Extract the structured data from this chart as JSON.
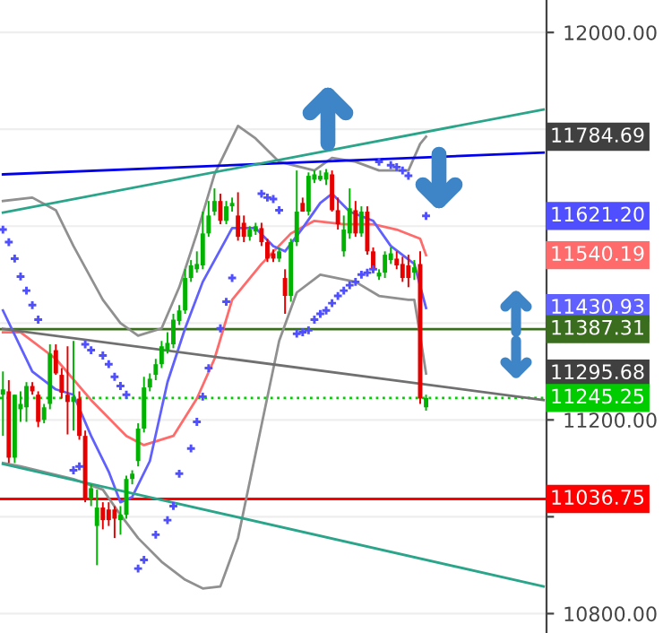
{
  "chart_data": {
    "type": "candlestick",
    "categories": [
      null,
      null,
      null,
      null,
      null,
      null,
      null,
      null,
      null,
      null,
      null,
      null,
      null,
      null,
      null,
      null,
      null,
      null,
      null,
      null,
      null,
      null,
      null,
      null,
      null,
      null,
      null,
      null,
      null,
      null,
      null,
      null,
      null,
      null,
      null,
      null,
      null,
      null,
      null,
      null,
      null,
      null,
      null,
      null,
      null,
      null,
      null,
      null,
      null,
      null,
      null,
      null,
      null,
      null,
      null,
      null,
      null,
      null,
      null,
      null,
      null,
      null,
      null,
      null,
      null,
      null,
      null,
      null,
      null,
      null,
      null,
      null,
      null,
      null,
      null,
      null,
      null,
      null,
      null,
      null,
      null,
      null,
      null,
      null,
      null,
      null,
      null,
      null,
      null,
      null,
      null,
      null,
      null
    ],
    "ohlc": [
      [
        11252,
        11300,
        11167,
        11263
      ],
      [
        11259,
        11282,
        11111,
        11122
      ],
      [
        11122,
        11252,
        11111,
        11252
      ],
      [
        11222,
        11259,
        11196,
        11233
      ],
      [
        11226,
        11278,
        11196,
        11270
      ],
      [
        11270,
        11278,
        11252,
        11259
      ],
      [
        11252,
        11259,
        11185,
        11196
      ],
      [
        11200,
        11233,
        11193,
        11226
      ],
      [
        11233,
        11356,
        11222,
        11337
      ],
      [
        11344,
        11356,
        11293,
        11296
      ],
      [
        11293,
        11307,
        11244,
        11256
      ],
      [
        11252,
        11352,
        11170,
        11237
      ],
      [
        11237,
        11363,
        11178,
        11248
      ],
      [
        11244,
        11259,
        11159,
        11167
      ],
      [
        11167,
        11178,
        11030,
        11037
      ],
      [
        11037,
        11067,
        11022,
        11059
      ],
      [
        10981,
        11056,
        10900,
        11019
      ],
      [
        11019,
        11030,
        10974,
        10993
      ],
      [
        11015,
        11030,
        10981,
        10993
      ],
      [
        11015,
        11022,
        10956,
        10996
      ],
      [
        10993,
        11022,
        10963,
        11004
      ],
      [
        11004,
        11085,
        10996,
        11078
      ],
      [
        11078,
        11096,
        11067,
        11089
      ],
      [
        11115,
        11193,
        11104,
        11182
      ],
      [
        11182,
        11289,
        11174,
        11267
      ],
      [
        11267,
        11296,
        11259,
        11285
      ],
      [
        11293,
        11326,
        11282,
        11315
      ],
      [
        11315,
        11363,
        11307,
        11352
      ],
      [
        11344,
        11381,
        11337,
        11359
      ],
      [
        11356,
        11419,
        11348,
        11407
      ],
      [
        11404,
        11437,
        11396,
        11426
      ],
      [
        11426,
        11511,
        11419,
        11493
      ],
      [
        11493,
        11530,
        11485,
        11519
      ],
      [
        11511,
        11548,
        11504,
        11522
      ],
      [
        11519,
        11630,
        11511,
        11585
      ],
      [
        11585,
        11652,
        11578,
        11622
      ],
      [
        11630,
        11678,
        11622,
        11652
      ],
      [
        11652,
        11667,
        11604,
        11611
      ],
      [
        11611,
        11652,
        11604,
        11641
      ],
      [
        11641,
        11659,
        11630,
        11648
      ],
      [
        11622,
        11670,
        11570,
        11578
      ],
      [
        11607,
        11622,
        11567,
        11578
      ],
      [
        11578,
        11600,
        11570,
        11593
      ],
      [
        11589,
        11607,
        11582,
        11600
      ],
      [
        11596,
        11607,
        11559,
        11567
      ],
      [
        11567,
        11574,
        11526,
        11533
      ],
      [
        11544,
        11552,
        11526,
        11533
      ],
      [
        11533,
        11556,
        11526,
        11548
      ],
      [
        11493,
        11511,
        11419,
        11456
      ],
      [
        11456,
        11574,
        11444,
        11567
      ],
      [
        11567,
        11715,
        11559,
        11630
      ],
      [
        11648,
        11659,
        11630,
        11630
      ],
      [
        11630,
        11711,
        11622,
        11704
      ],
      [
        11696,
        11715,
        11689,
        11707
      ],
      [
        11696,
        11715,
        11693,
        11704
      ],
      [
        11696,
        11718,
        11685,
        11711
      ],
      [
        11707,
        11715,
        11630,
        11633
      ],
      [
        11633,
        11659,
        11593,
        11604
      ],
      [
        11548,
        11622,
        11537,
        11593
      ],
      [
        11585,
        11678,
        11574,
        11637
      ],
      [
        11633,
        11652,
        11578,
        11585
      ],
      [
        11585,
        11641,
        11578,
        11630
      ],
      [
        11630,
        11641,
        11541,
        11548
      ],
      [
        11548,
        11556,
        11504,
        11511
      ],
      [
        11496,
        11511,
        11489,
        11504
      ],
      [
        11504,
        11548,
        11493,
        11541
      ],
      [
        11530,
        11556,
        11522,
        11544
      ],
      [
        11533,
        11548,
        11511,
        11519
      ],
      [
        11522,
        11537,
        11485,
        11493
      ],
      [
        11519,
        11541,
        11474,
        11493
      ],
      [
        11504,
        11530,
        11489,
        11515
      ],
      [
        11522,
        11548,
        11233,
        11244
      ],
      [
        11226,
        11252,
        11219,
        11245.25
      ],
      null,
      null,
      null,
      null,
      null,
      null,
      null,
      null,
      null,
      null,
      null,
      null,
      null,
      null,
      null,
      null,
      null,
      null,
      null,
      null
    ],
    "colors": [
      "#00b300",
      "#e60000",
      "#00b300",
      "#00b300",
      "#00b300",
      "#e60000",
      "#e60000",
      "#00b300",
      "#00b300",
      "#e60000",
      "#e60000",
      "#e60000",
      "#00b300",
      "#e60000",
      "#e60000",
      "#00b300",
      "#00b300",
      "#e60000",
      "#e60000",
      "#e60000",
      "#00b300",
      "#00b300",
      "#00b300",
      "#00b300",
      "#00b300",
      "#00b300",
      "#00b300",
      "#00b300",
      "#00b300",
      "#00b300",
      "#00b300",
      "#00b300",
      "#00b300",
      "#00b300",
      "#00b300",
      "#00b300",
      "#00b300",
      "#e60000",
      "#00b300",
      "#00b300",
      "#e60000",
      "#e60000",
      "#00b300",
      "#00b300",
      "#e60000",
      "#e60000",
      "#e60000",
      "#00b300",
      "#e60000",
      "#00b300",
      "#00b300",
      "#e60000",
      "#00b300",
      "#00b300",
      "#00b300",
      "#00b300",
      "#e60000",
      "#e60000",
      "#00b300",
      "#00b300",
      "#e60000",
      "#00b300",
      "#e60000",
      "#e60000",
      "#00b300",
      "#00b300",
      "#00b300",
      "#e60000",
      "#e60000",
      "#e60000",
      "#00b300",
      "#e60000",
      "#00b300",
      null,
      null,
      null,
      null,
      null,
      null,
      null,
      null,
      null,
      null,
      null,
      null,
      null,
      null,
      null,
      null,
      null,
      null,
      null,
      null
    ],
    "series": [
      {
        "type": "line",
        "color": "#909090",
        "values": [
          11652,
          null,
          null,
          null,
          null,
          11659,
          null,
          null,
          null,
          11633,
          null,
          null,
          11559,
          null,
          null,
          null,
          null,
          11448,
          null,
          null,
          11400,
          null,
          null,
          11374,
          null,
          null,
          null,
          11389,
          null,
          null,
          11474,
          null,
          null,
          11585,
          null,
          null,
          11707,
          null,
          null,
          null,
          11807,
          null,
          null,
          11781,
          null,
          null,
          null,
          11733,
          null,
          null,
          null,
          null,
          null,
          11715,
          null,
          null,
          11741,
          null,
          null,
          null,
          11733,
          null,
          null,
          null,
          11715,
          null,
          null,
          null,
          null,
          11715,
          null,
          11770,
          11784.69,
          null,
          null,
          null,
          null,
          null,
          null,
          null,
          null,
          null,
          null,
          null,
          null,
          null,
          null,
          null,
          null,
          null,
          null,
          null,
          null
        ]
      },
      {
        "type": "line",
        "color": "#909090",
        "values": [
          11111,
          null,
          null,
          11104,
          null,
          null,
          null,
          null,
          null,
          null,
          null,
          null,
          11078,
          null,
          null,
          null,
          null,
          11056,
          null,
          null,
          11004,
          null,
          null,
          10956,
          null,
          null,
          null,
          10907,
          null,
          null,
          null,
          10870,
          null,
          null,
          10852,
          null,
          null,
          10856,
          null,
          null,
          10956,
          null,
          null,
          null,
          11189,
          null,
          null,
          11363,
          null,
          null,
          11463,
          null,
          null,
          null,
          11500,
          null,
          null,
          null,
          null,
          null,
          11485,
          null,
          null,
          null,
          11456,
          null,
          null,
          null,
          null,
          11448,
          11448,
          11374,
          11295.68,
          null,
          null,
          null,
          null,
          null,
          null,
          null,
          null,
          null,
          null,
          null,
          null,
          null,
          null,
          null,
          null,
          null,
          null,
          null,
          null
        ]
      },
      {
        "type": "line",
        "color": "#ff6b6b",
        "values": [
          11381,
          null,
          null,
          11381,
          null,
          null,
          null,
          null,
          null,
          11326,
          null,
          null,
          null,
          null,
          null,
          11241,
          null,
          null,
          null,
          null,
          null,
          11167,
          null,
          null,
          11148,
          null,
          null,
          null,
          null,
          11167,
          null,
          null,
          null,
          11244,
          null,
          null,
          11326,
          null,
          null,
          11448,
          null,
          null,
          null,
          null,
          11522,
          null,
          null,
          null,
          null,
          11585,
          null,
          null,
          null,
          11611,
          null,
          null,
          null,
          null,
          11604,
          null,
          null,
          null,
          null,
          11604,
          null,
          null,
          null,
          11593,
          null,
          null,
          null,
          11574,
          11540.19,
          null,
          null,
          null,
          null,
          null,
          null,
          null,
          null,
          null,
          null,
          null,
          null,
          null,
          null,
          null,
          null,
          null,
          null,
          null,
          null
        ]
      },
      {
        "type": "line",
        "color": "#6060ff",
        "values": [
          11426,
          null,
          null,
          null,
          null,
          11300,
          null,
          null,
          null,
          11263,
          null,
          null,
          11252,
          null,
          null,
          11167,
          null,
          null,
          11093,
          null,
          11030,
          null,
          11041,
          null,
          null,
          11115,
          null,
          null,
          11278,
          null,
          null,
          11389,
          null,
          null,
          11485,
          null,
          null,
          null,
          null,
          11596,
          null,
          null,
          null,
          11596,
          null,
          null,
          11559,
          null,
          11548,
          null,
          null,
          11596,
          null,
          null,
          11648,
          null,
          11667,
          null,
          null,
          11630,
          null,
          null,
          null,
          11611,
          null,
          null,
          11559,
          null,
          null,
          null,
          11522,
          null,
          11430.93,
          null,
          null,
          null,
          null,
          null,
          null,
          null,
          null,
          null,
          null,
          null,
          null,
          null,
          null,
          null,
          null,
          null,
          null,
          null,
          null
        ]
      },
      {
        "type": "scatter",
        "color": "#4f4fff",
        "marker": "cross",
        "values": [
          11593,
          11567,
          11533,
          11496,
          11467,
          11437,
          11407,
          null,
          null,
          null,
          null,
          null,
          11096,
          11104,
          11356,
          11344,
          null,
          11333,
          11315,
          11289,
          11270,
          11252,
          null,
          10893,
          10911,
          null,
          10963,
          null,
          10993,
          11022,
          11089,
          null,
          11141,
          11196,
          11248,
          11307,
          null,
          11389,
          11444,
          11493,
          null,
          null,
          null,
          null,
          11667,
          11659,
          11656,
          11633,
          null,
          null,
          11378,
          11381,
          11385,
          11407,
          11419,
          11426,
          11441,
          11456,
          11467,
          11478,
          11485,
          11500,
          11504,
          11511,
          11733,
          null,
          11726,
          11722,
          11715,
          11704,
          null,
          null,
          11621.2,
          null,
          null,
          null,
          null,
          null,
          null,
          null,
          null,
          null,
          null,
          null,
          null,
          null,
          null,
          null,
          null,
          null,
          null,
          null,
          null
        ]
      },
      {
        "type": "line",
        "color": "#0000ee",
        "values": [
          11707,
          null,
          null,
          null,
          null,
          null,
          null,
          null,
          null,
          null,
          null,
          null,
          null,
          null,
          null,
          null,
          null,
          null,
          null,
          null,
          null,
          null,
          null,
          null,
          null,
          null,
          null,
          null,
          null,
          null,
          null,
          null,
          null,
          null,
          null,
          null,
          null,
          null,
          null,
          null,
          null,
          null,
          null,
          null,
          null,
          null,
          null,
          null,
          null,
          null,
          null,
          null,
          null,
          null,
          null,
          null,
          null,
          null,
          null,
          null,
          null,
          null,
          null,
          null,
          null,
          null,
          null,
          null,
          null,
          null,
          null,
          null,
          null,
          null,
          null,
          null,
          null,
          null,
          null,
          null,
          null,
          null,
          null,
          null,
          null,
          null,
          null,
          null,
          null,
          null,
          null,
          null,
          11752
        ]
      },
      {
        "type": "line",
        "color": "#2aa58a",
        "values": [
          11628,
          null,
          null,
          null,
          null,
          null,
          null,
          null,
          null,
          null,
          null,
          null,
          null,
          null,
          null,
          null,
          null,
          null,
          null,
          null,
          null,
          null,
          null,
          null,
          null,
          null,
          null,
          null,
          null,
          null,
          null,
          null,
          null,
          null,
          null,
          null,
          null,
          null,
          null,
          null,
          null,
          null,
          null,
          null,
          null,
          null,
          null,
          null,
          null,
          null,
          null,
          null,
          null,
          null,
          null,
          null,
          null,
          null,
          null,
          null,
          null,
          null,
          null,
          null,
          null,
          null,
          null,
          null,
          null,
          null,
          null,
          null,
          null,
          null,
          null,
          null,
          null,
          null,
          null,
          null,
          null,
          null,
          null,
          null,
          null,
          null,
          null,
          null,
          null,
          null,
          null,
          null,
          11841
        ]
      },
      {
        "type": "line",
        "color": "#707070",
        "values": [
          11388,
          null,
          null,
          null,
          null,
          null,
          null,
          null,
          null,
          null,
          null,
          null,
          null,
          null,
          null,
          null,
          null,
          null,
          null,
          null,
          null,
          null,
          null,
          null,
          null,
          null,
          null,
          null,
          null,
          null,
          null,
          null,
          null,
          null,
          null,
          null,
          null,
          null,
          null,
          null,
          null,
          null,
          null,
          null,
          null,
          null,
          null,
          null,
          null,
          null,
          null,
          null,
          null,
          null,
          null,
          null,
          null,
          null,
          null,
          null,
          null,
          null,
          null,
          null,
          null,
          null,
          null,
          null,
          null,
          null,
          null,
          null,
          null,
          null,
          null,
          null,
          null,
          null,
          null,
          null,
          null,
          null,
          null,
          null,
          null,
          null,
          null,
          null,
          null,
          null,
          null,
          null,
          11241
        ]
      },
      {
        "type": "line",
        "color": "#2aa58a",
        "values": [
          11109,
          null,
          null,
          null,
          null,
          null,
          null,
          null,
          null,
          null,
          null,
          null,
          null,
          null,
          null,
          null,
          null,
          null,
          null,
          null,
          null,
          null,
          null,
          null,
          null,
          null,
          null,
          null,
          null,
          null,
          null,
          null,
          null,
          null,
          null,
          null,
          null,
          null,
          null,
          null,
          null,
          null,
          null,
          null,
          null,
          null,
          null,
          null,
          null,
          null,
          null,
          null,
          null,
          null,
          null,
          null,
          null,
          null,
          null,
          null,
          null,
          null,
          null,
          null,
          null,
          null,
          null,
          null,
          null,
          null,
          null,
          null,
          null,
          null,
          null,
          null,
          null,
          null,
          null,
          null,
          null,
          null,
          null,
          null,
          null,
          null,
          null,
          null,
          null,
          null,
          null,
          null,
          10856
        ]
      }
    ],
    "annotations": [
      "11784.69",
      "11621.20",
      "11540.19",
      "11430.93",
      "11295.68"
    ],
    "ref_lines": [
      {
        "axis": "y",
        "value": 11387.31,
        "label": "11387.31",
        "color": "#3a6e1e",
        "line_style": "solid"
      },
      {
        "axis": "y",
        "value": 11245.25,
        "label": "11245.25",
        "color": "#00cc00",
        "line_style": "dotted"
      },
      {
        "axis": "y",
        "value": 11036.75,
        "label": "11036.75",
        "color": "#ff0000",
        "line_style": "solid"
      }
    ],
    "ylim": [
      10760,
      12067
    ],
    "yticks": [
      {
        "value": 10800,
        "label": "10800.00"
      },
      {
        "value": 11000,
        "label": null
      },
      {
        "value": 11200,
        "label": "11200.00"
      },
      {
        "value": 11400,
        "label": null
      },
      {
        "value": 11600,
        "label": null
      },
      {
        "value": 11800,
        "label": null
      },
      {
        "value": 12000,
        "label": "12000.00"
      }
    ],
    "tick_labels": "y",
    "grid": "y"
  }
}
